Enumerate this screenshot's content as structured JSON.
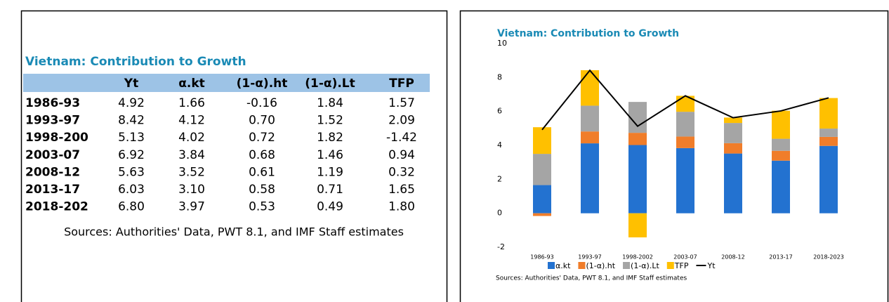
{
  "table": {
    "title": "Vietnam: Contribution to Growth",
    "columns": [
      "Yt",
      "α.kt",
      "(1-α).ht",
      "(1-α).Lt",
      "TFP"
    ],
    "rows": [
      [
        "1986-93",
        "4.92",
        "1.66",
        "-0.16",
        "1.84",
        "1.57"
      ],
      [
        "1993-97",
        "8.42",
        "4.12",
        "0.70",
        "1.52",
        "2.09"
      ],
      [
        "1998-200",
        "5.13",
        "4.02",
        "0.72",
        "1.82",
        "-1.42"
      ],
      [
        "2003-07",
        "6.92",
        "3.84",
        "0.68",
        "1.46",
        "0.94"
      ],
      [
        "2008-12",
        "5.63",
        "3.52",
        "0.61",
        "1.19",
        "0.32"
      ],
      [
        "2013-17",
        "6.03",
        "3.10",
        "0.58",
        "0.71",
        "1.65"
      ],
      [
        "2018-202",
        "6.80",
        "3.97",
        "0.53",
        "0.49",
        "1.80"
      ]
    ],
    "source": "Sources: Authorities' Data, PWT 8.1, and IMF Staff estimates"
  },
  "chart_data": {
    "type": "stacked-bar-line",
    "title": "Vietnam: Contribution to Growth",
    "categories": [
      "1986-93",
      "1993-97",
      "1998-2002",
      "2003-07",
      "2008-12",
      "2013-17",
      "2018-2023"
    ],
    "series": [
      {
        "name": "α.kt",
        "color": "#2372d0",
        "values": [
          1.66,
          4.12,
          4.02,
          3.84,
          3.52,
          3.1,
          3.97
        ]
      },
      {
        "name": "(1-α).ht",
        "color": "#f07d2a",
        "values": [
          -0.16,
          0.7,
          0.72,
          0.68,
          0.61,
          0.58,
          0.53
        ]
      },
      {
        "name": "(1-α).Lt",
        "color": "#a5a5a5",
        "values": [
          1.84,
          1.52,
          1.82,
          1.46,
          1.19,
          0.71,
          0.49
        ]
      },
      {
        "name": "TFP",
        "color": "#ffc000",
        "values": [
          1.57,
          2.09,
          -1.42,
          0.94,
          0.32,
          1.65,
          1.8
        ]
      },
      {
        "name": "Yt",
        "color": "#000000",
        "type": "line",
        "values": [
          4.92,
          8.42,
          5.13,
          6.92,
          5.63,
          6.03,
          6.8
        ]
      }
    ],
    "ylim": [
      -2,
      10
    ],
    "yticks": [
      -2,
      0,
      2,
      4,
      6,
      8,
      10
    ],
    "legend": "bottom",
    "source": "Sources: Authorities' Data, PWT 8.1, and IMF Staff estimates"
  }
}
